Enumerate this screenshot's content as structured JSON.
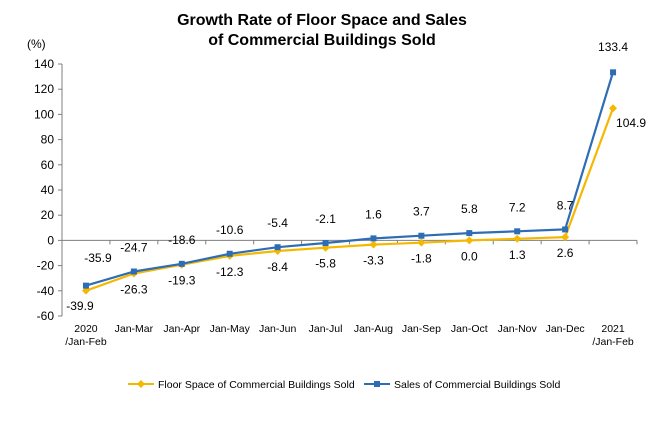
{
  "chart_data": {
    "type": "line",
    "title": [
      "Growth Rate of Floor Space and Sales",
      "of Commercial Buildings Sold"
    ],
    "ylabel": "(%)",
    "ylim": [
      -60,
      140
    ],
    "yticks": [
      140,
      120,
      100,
      80,
      60,
      40,
      20,
      0,
      -20,
      -40,
      -60
    ],
    "categories": [
      [
        "2020",
        "/Jan-Feb"
      ],
      [
        "Jan-Mar"
      ],
      [
        "Jan-Apr"
      ],
      [
        "Jan-May"
      ],
      [
        "Jan-Jun"
      ],
      [
        "Jan-Jul"
      ],
      [
        "Jan-Aug"
      ],
      [
        "Jan-Sep"
      ],
      [
        "Jan-Oct"
      ],
      [
        "Jan-Nov"
      ],
      [
        "Jan-Dec"
      ],
      [
        "2021",
        "/Jan-Feb"
      ]
    ],
    "series": [
      {
        "name": "Floor Space of Commercial Buildings Sold",
        "color": "#F5B800",
        "marker": "diamond",
        "values": [
          -39.9,
          -26.3,
          -19.3,
          -12.3,
          -8.4,
          -5.8,
          -3.3,
          -1.8,
          0.0,
          1.3,
          2.6,
          104.9
        ],
        "labels": [
          "-39.9",
          "-26.3",
          "-19.3",
          "-12.3",
          "-8.4",
          "-5.8",
          "-3.3",
          "-1.8",
          "0.0",
          "1.3",
          "2.6",
          "104.9"
        ]
      },
      {
        "name": "Sales of Commercial Buildings Sold",
        "color": "#2E6DB4",
        "marker": "square",
        "values": [
          -35.9,
          -24.7,
          -18.6,
          -10.6,
          -5.4,
          -2.1,
          1.6,
          3.7,
          5.8,
          7.2,
          8.7,
          133.4
        ],
        "labels": [
          "-35.9",
          "-24.7",
          "-18.6",
          "-10.6",
          "-5.4",
          "-2.1",
          "1.6",
          "3.7",
          "5.8",
          "7.2",
          "8.7",
          "133.4"
        ]
      }
    ],
    "legend_position": "bottom",
    "grid": false
  }
}
